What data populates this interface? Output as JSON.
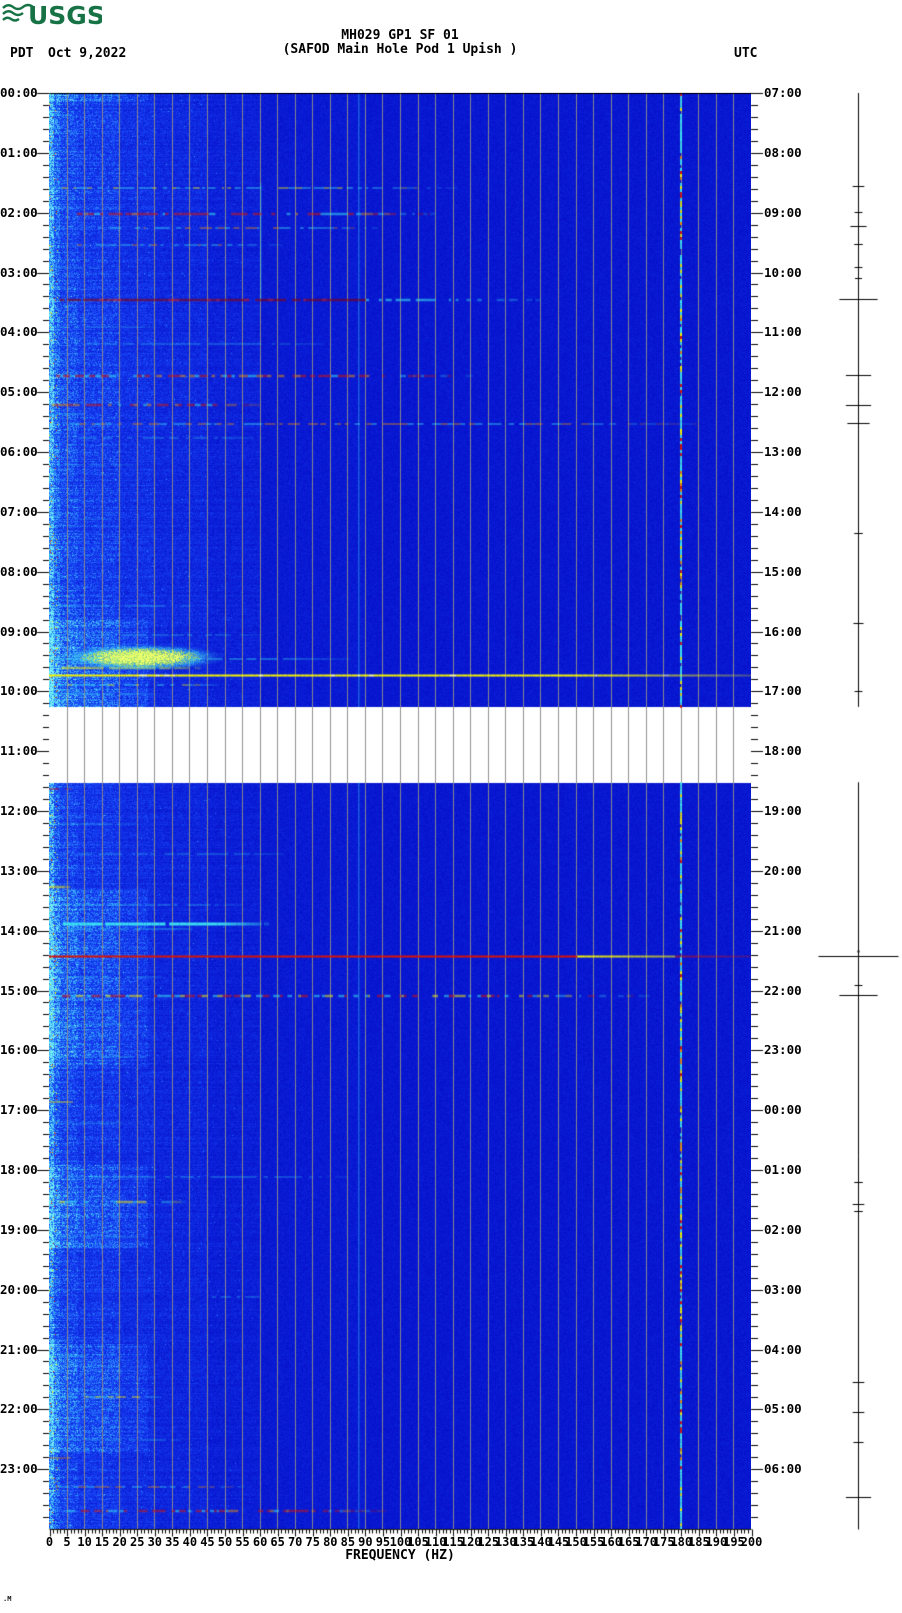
{
  "page": {
    "background": "#ffffff",
    "footer_mark": ".M"
  },
  "header": {
    "logo_text": "USGS",
    "logo_color": "#177345",
    "left_timezone": "PDT",
    "date": "Oct 9,2022",
    "right_timezone": "UTC"
  },
  "titles": {
    "line1": "MH029 GP1 SF 01",
    "line2": "(SAFOD Main Hole Pod 1 Upish )"
  },
  "chart_data": {
    "type": "heatmap",
    "subtype": "seismic-spectrogram",
    "station": "MH029 GP1 SF 01",
    "location": "(SAFOD Main Hole Pod 1 Upish )",
    "date": "Oct 9,2022",
    "xlabel": "FREQUENCY (HZ)",
    "x_axis": {
      "min": 0,
      "max": 200,
      "unit": "Hz",
      "major_tick_step": 5,
      "minor_tick_step": 1,
      "tick_labels": [
        "0",
        "5",
        "10",
        "15",
        "20",
        "25",
        "30",
        "35",
        "40",
        "45",
        "50",
        "55",
        "60",
        "65",
        "70",
        "75",
        "80",
        "85",
        "90",
        "95",
        "100",
        "105",
        "110",
        "115",
        "120",
        "125",
        "130",
        "135",
        "140",
        "145",
        "150",
        "155",
        "160",
        "165",
        "170",
        "175",
        "180",
        "185",
        "190",
        "195",
        "200"
      ]
    },
    "left_axis": {
      "timezone": "PDT",
      "hour_labels": [
        "00:00",
        "01:00",
        "02:00",
        "03:00",
        "04:00",
        "05:00",
        "06:00",
        "07:00",
        "08:00",
        "09:00",
        "10:00",
        "11:00",
        "12:00",
        "13:00",
        "14:00",
        "15:00",
        "16:00",
        "17:00",
        "18:00",
        "19:00",
        "20:00",
        "21:00",
        "22:00",
        "23:00"
      ],
      "minor_ticks_per_hour": 4
    },
    "right_axis": {
      "timezone": "UTC",
      "hour_labels": [
        "07:00",
        "08:00",
        "09:00",
        "10:00",
        "11:00",
        "12:00",
        "13:00",
        "14:00",
        "15:00",
        "16:00",
        "17:00",
        "18:00",
        "19:00",
        "20:00",
        "21:00",
        "22:00",
        "23:00",
        "00:00",
        "01:00",
        "02:00",
        "03:00",
        "04:00",
        "05:00",
        "06:00"
      ],
      "minor_ticks_per_hour": 4
    },
    "data_gap": {
      "start_hour": 10.26,
      "end_hour": 11.52
    },
    "palette": {
      "background_blue": "#0308c6",
      "grid_gray": "#8b8b8b",
      "cyan": "#3ce6f2",
      "yellow": "#f6f600",
      "orange": "#f09000",
      "red": "#dd1500",
      "dark_red": "#8e0000",
      "white": "#ffffff",
      "black": "#000000"
    },
    "grid": {
      "vertical_every_hz": 5
    },
    "vertical_lines": [
      {
        "freq_hz": 180,
        "style": "multicolor",
        "t0": 0,
        "t1": 24
      },
      {
        "freq_hz": 88,
        "style": "faint_cyan",
        "t0": 0,
        "t1": 24
      },
      {
        "freq_hz": 60,
        "style": "faint_cyan",
        "t0": 1.5,
        "t1": 3.45
      }
    ],
    "activity_bands": [
      [
        0,
        0.15
      ],
      [
        8.8,
        10.26
      ],
      [
        13.3,
        16.3
      ],
      [
        17.9,
        19.3
      ],
      [
        20.9,
        22.7
      ]
    ],
    "blob": {
      "t0": 9.2,
      "t1": 9.65,
      "f0": 2,
      "f1": 50
    },
    "events": [
      {
        "t": 0.35,
        "f0": 0,
        "f1": 6,
        "style": "cyan",
        "s": 0.5
      },
      {
        "t": 1.57,
        "f0": 0,
        "f1": 115,
        "style": "cyan_yellow",
        "s": 0.8
      },
      {
        "t": 2.0,
        "f0": 8,
        "f1": 110,
        "style": "red_dash",
        "s": 0.9
      },
      {
        "t": 2.24,
        "f0": 12,
        "f1": 95,
        "style": "cyan_orange",
        "s": 0.8
      },
      {
        "t": 2.52,
        "f0": 8,
        "f1": 65,
        "style": "cyan_orange",
        "s": 0.7
      },
      {
        "t": 2.9,
        "f0": 0,
        "f1": 20,
        "style": "cyan",
        "s": 0.4
      },
      {
        "t": 3.44,
        "f0": 3,
        "f1": 140,
        "style": "dark_red",
        "s": 1.0
      },
      {
        "t": 3.9,
        "f0": 0,
        "f1": 30,
        "style": "cyan",
        "s": 0.4
      },
      {
        "t": 4.17,
        "f0": 10,
        "f1": 80,
        "style": "cyan",
        "s": 0.45
      },
      {
        "t": 4.72,
        "f0": 2,
        "f1": 120,
        "style": "red_dash",
        "s": 0.9
      },
      {
        "t": 5.2,
        "f0": 0,
        "f1": 60,
        "style": "red_dash",
        "s": 0.85
      },
      {
        "t": 5.35,
        "f0": 0,
        "f1": 10,
        "style": "cyan",
        "s": 0.5
      },
      {
        "t": 5.52,
        "f0": 6,
        "f1": 185,
        "style": "orange_cyan",
        "s": 0.8
      },
      {
        "t": 5.75,
        "f0": 8,
        "f1": 60,
        "style": "cyan",
        "s": 0.5
      },
      {
        "t": 6.2,
        "f0": 0,
        "f1": 25,
        "style": "cyan",
        "s": 0.35
      },
      {
        "t": 7.1,
        "f0": 0,
        "f1": 20,
        "style": "cyan",
        "s": 0.3
      },
      {
        "t": 8.55,
        "f0": 0,
        "f1": 45,
        "style": "cyan",
        "s": 0.5
      },
      {
        "t": 9.05,
        "f0": 0,
        "f1": 60,
        "style": "cyan",
        "s": 0.5
      },
      {
        "t": 9.45,
        "f0": 0,
        "f1": 85,
        "style": "cyan",
        "s": 0.7
      },
      {
        "t": 9.6,
        "f0": 2,
        "f1": 42,
        "style": "yellow",
        "s": 0.9
      },
      {
        "t": 9.72,
        "f0": 0,
        "f1": 200,
        "style": "yellow_full",
        "s": 1.0
      },
      {
        "t": 9.88,
        "f0": 2,
        "f1": 48,
        "style": "cyan_yellow",
        "s": 0.8
      },
      {
        "t": 10.02,
        "f0": 0,
        "f1": 30,
        "style": "cyan",
        "s": 0.6
      },
      {
        "t": 11.62,
        "f0": 0,
        "f1": 5,
        "style": "red",
        "s": 0.8
      },
      {
        "t": 12.2,
        "f0": 0,
        "f1": 25,
        "style": "cyan",
        "s": 0.4
      },
      {
        "t": 12.7,
        "f0": 4,
        "f1": 70,
        "style": "cyan",
        "s": 0.45
      },
      {
        "t": 13.25,
        "f0": 0,
        "f1": 5,
        "style": "yellow",
        "s": 0.9
      },
      {
        "t": 13.55,
        "f0": 4,
        "f1": 55,
        "style": "cyan",
        "s": 0.5
      },
      {
        "t": 13.87,
        "f0": 4,
        "f1": 62,
        "style": "cyan_bright",
        "s": 0.95
      },
      {
        "t": 13.96,
        "f0": 5,
        "f1": 45,
        "style": "cyan",
        "s": 0.6
      },
      {
        "t": 14.42,
        "f0": 0,
        "f1": 200,
        "style": "red_full",
        "s": 1.0
      },
      {
        "t": 14.75,
        "f0": 3,
        "f1": 32,
        "style": "cyan",
        "s": 0.5
      },
      {
        "t": 15.07,
        "f0": 2,
        "f1": 170,
        "style": "red_yellow_dash",
        "s": 0.9
      },
      {
        "t": 15.55,
        "f0": 0,
        "f1": 25,
        "style": "cyan",
        "s": 0.35
      },
      {
        "t": 16.1,
        "f0": 0,
        "f1": 30,
        "style": "cyan",
        "s": 0.45
      },
      {
        "t": 16.85,
        "f0": 0,
        "f1": 6,
        "style": "yellow",
        "s": 0.8
      },
      {
        "t": 17.2,
        "f0": 0,
        "f1": 25,
        "style": "cyan",
        "s": 0.35
      },
      {
        "t": 18.1,
        "f0": 4,
        "f1": 85,
        "style": "cyan",
        "s": 0.5
      },
      {
        "t": 18.52,
        "f0": 2,
        "f1": 38,
        "style": "cyan_yellow",
        "s": 0.85
      },
      {
        "t": 19.1,
        "f0": 0,
        "f1": 30,
        "style": "cyan",
        "s": 0.4
      },
      {
        "t": 20.1,
        "f0": 45,
        "f1": 62,
        "style": "cyan",
        "s": 0.5
      },
      {
        "t": 21.1,
        "f0": 0,
        "f1": 12,
        "style": "cyan",
        "s": 0.6
      },
      {
        "t": 21.78,
        "f0": 3,
        "f1": 32,
        "style": "cyan_yellow",
        "s": 0.8
      },
      {
        "t": 22.5,
        "f0": 0,
        "f1": 40,
        "style": "cyan",
        "s": 0.45
      },
      {
        "t": 22.8,
        "f0": 0,
        "f1": 6,
        "style": "orange",
        "s": 0.7
      },
      {
        "t": 23.28,
        "f0": 2,
        "f1": 55,
        "style": "cyan_orange",
        "s": 0.7
      },
      {
        "t": 23.68,
        "f0": 5,
        "f1": 95,
        "style": "red_dash",
        "s": 0.85
      }
    ],
    "trace": {
      "marks": [
        {
          "t": 1.55,
          "a": 0.1
        },
        {
          "t": 1.99,
          "a": 0.05
        },
        {
          "t": 2.22,
          "a": 0.16
        },
        {
          "t": 2.52,
          "a": 0.06
        },
        {
          "t": 2.9,
          "a": 0.05
        },
        {
          "t": 3.1,
          "a": 0.04
        },
        {
          "t": 3.44,
          "a": 0.45
        },
        {
          "t": 4.72,
          "a": 0.28
        },
        {
          "t": 5.21,
          "a": 0.28
        },
        {
          "t": 5.51,
          "a": 0.24
        },
        {
          "t": 7.35,
          "a": 0.06
        },
        {
          "t": 8.85,
          "a": 0.08
        },
        {
          "t": 10.0,
          "a": 0.05
        },
        {
          "t": 14.42,
          "a": 1.0
        },
        {
          "t": 14.9,
          "a": 0.05
        },
        {
          "t": 15.07,
          "a": 0.45
        },
        {
          "t": 18.2,
          "a": 0.06
        },
        {
          "t": 18.56,
          "a": 0.1
        },
        {
          "t": 18.68,
          "a": 0.06
        },
        {
          "t": 21.54,
          "a": 0.1
        },
        {
          "t": 22.04,
          "a": 0.1
        },
        {
          "t": 22.54,
          "a": 0.08
        },
        {
          "t": 23.46,
          "a": 0.28
        }
      ]
    }
  }
}
